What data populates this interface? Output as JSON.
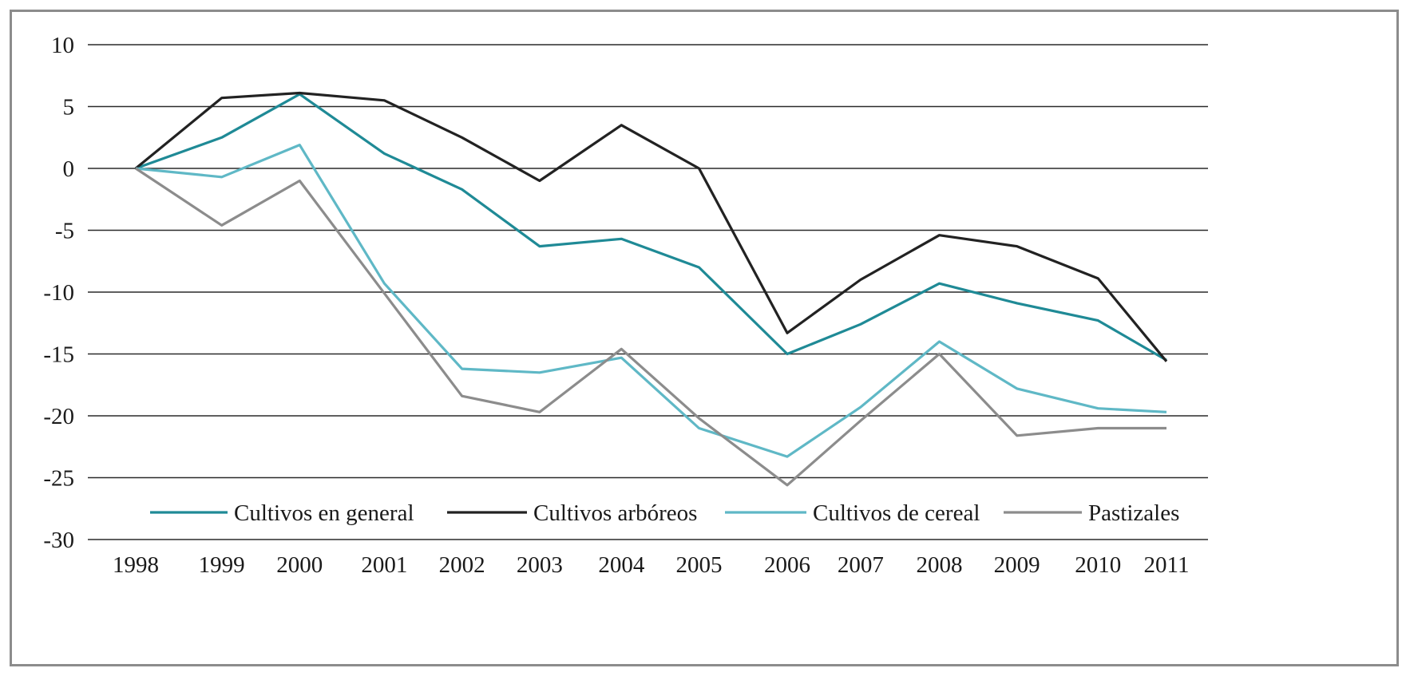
{
  "chart_data": {
    "type": "line",
    "title": "",
    "xlabel": "",
    "ylabel": "",
    "x": [
      "1998",
      "1999",
      "2000",
      "2001",
      "2002",
      "2003",
      "2004",
      "2005",
      "2006",
      "2007",
      "2008",
      "2009",
      "2010",
      "2011"
    ],
    "ylim": [
      -30,
      10
    ],
    "yticks": [
      10,
      5,
      0,
      -5,
      -10,
      -15,
      -20,
      -25,
      -30
    ],
    "ytick_labels": [
      "10",
      "5",
      "0",
      "-5",
      "-10",
      "-15",
      "-20",
      "-25",
      "-30"
    ],
    "grid": true,
    "legend_position": "bottom",
    "series": [
      {
        "name": "Cultivos en general",
        "color": "#1f8a96",
        "values": [
          0,
          2.5,
          6,
          1.2,
          -1.7,
          -6.3,
          -5.7,
          -8,
          -15,
          -12.6,
          -9.3,
          -10.9,
          -12.3,
          -15.5
        ]
      },
      {
        "name": "Cultivos arbóreos",
        "color": "#222222",
        "values": [
          0,
          5.7,
          6.1,
          5.5,
          2.5,
          -1,
          3.5,
          0,
          -13.3,
          -9,
          -5.4,
          -6.3,
          -8.9,
          -15.6
        ]
      },
      {
        "name": "Cultivos de cereal",
        "color": "#5fb8c6",
        "values": [
          0,
          -0.7,
          1.9,
          -9.3,
          -16.2,
          -16.5,
          -15.3,
          -21,
          -23.3,
          -19.3,
          -14,
          -17.8,
          -19.4,
          -19.7
        ]
      },
      {
        "name": "Pastizales",
        "color": "#8c8c8c",
        "values": [
          0,
          -4.6,
          -1,
          -10.1,
          -18.4,
          -19.7,
          -14.6,
          -20.2,
          -25.6,
          -20.4,
          -15,
          -21.6,
          -21,
          -21
        ]
      }
    ]
  }
}
